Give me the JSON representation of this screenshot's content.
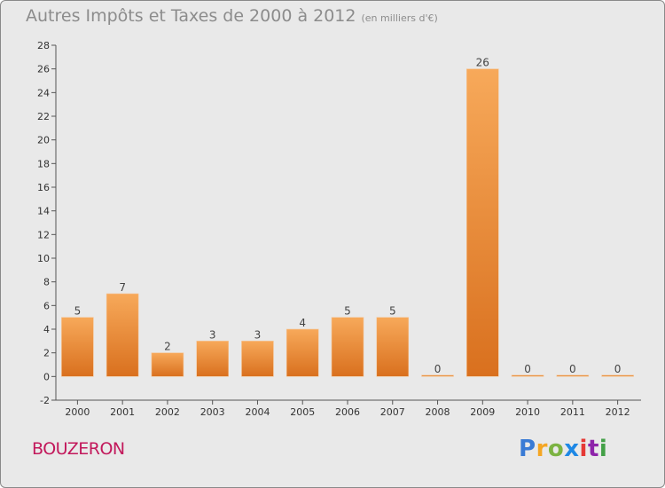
{
  "header": {
    "title": "Autres Impôts et Taxes de 2000 à 2012",
    "unit": "(en milliers d'€)"
  },
  "commune": "BOUZERON",
  "logo": {
    "text": "Proxiti"
  },
  "colors": {
    "bar_light": "#f7a95a",
    "bar_dark": "#d9701e",
    "commune": "#c2185b",
    "background": "#e9e9e9"
  },
  "chart_data": {
    "type": "bar",
    "title": "Autres Impôts et Taxes de 2000 à 2012",
    "xlabel": "",
    "ylabel": "",
    "categories": [
      "2000",
      "2001",
      "2002",
      "2003",
      "2004",
      "2005",
      "2006",
      "2007",
      "2008",
      "2009",
      "2010",
      "2011",
      "2012"
    ],
    "values": [
      5,
      7,
      2,
      3,
      3,
      4,
      5,
      5,
      0,
      26,
      0,
      0,
      0
    ],
    "ylim": [
      -2,
      28
    ],
    "yticks": [
      -2,
      0,
      2,
      4,
      6,
      8,
      10,
      12,
      14,
      16,
      18,
      20,
      22,
      24,
      26,
      28
    ],
    "grid": false,
    "data_labels": true
  }
}
